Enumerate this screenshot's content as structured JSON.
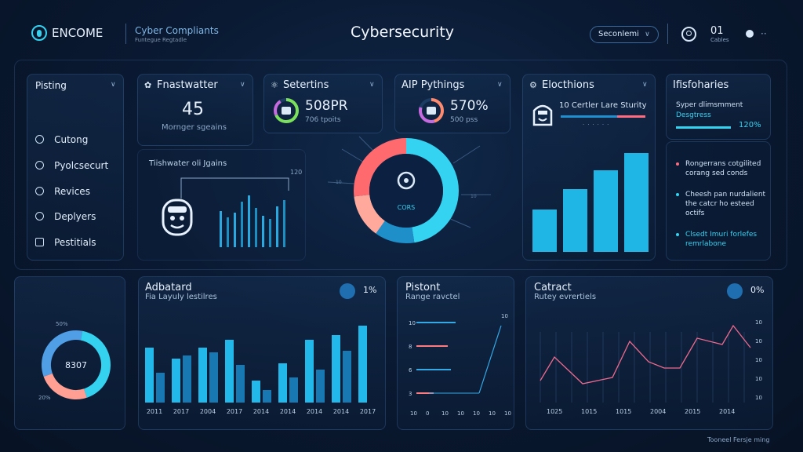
{
  "header": {
    "brand": "ENCOME",
    "subtitle": "Cyber Compliants",
    "subtitle2": "Funtegue Regtadle",
    "title": "Cybersecurity",
    "search_label": "Seconlemi",
    "counter_value": "01",
    "counter_label": "Cables"
  },
  "sidebar": {
    "heading": "Pisting",
    "items": [
      {
        "label": "Cutong"
      },
      {
        "label": "Pyolcsecurt"
      },
      {
        "label": "Revices"
      },
      {
        "label": "Deplyers"
      },
      {
        "label": "Pestitials"
      }
    ]
  },
  "panel_frustrated": {
    "title": "Fnastwatter",
    "value": "45",
    "caption": "Mornger sgeains",
    "chart_label": "Tiishwater oli Jgains",
    "axis_top": "120"
  },
  "panel_selections": {
    "title": "Setertins",
    "value": "508PR",
    "caption": "706 tpoits"
  },
  "panel_apy": {
    "title": "AIP Pythings",
    "value": "570%",
    "caption": "500 pss",
    "donut_label": "CORS"
  },
  "panel_elections": {
    "title": "Elocthions",
    "line1": "10 Certler Lare Sturity"
  },
  "panel_infobaries": {
    "title": "Ifisfoharies",
    "subtitle": "Syper dlimsmment",
    "subtitle2": "Desgtress",
    "progress_value": "120%",
    "bullets": [
      {
        "text": "Rongerrans cotgilited corang sed conds",
        "color": "#ff6b7f"
      },
      {
        "text": "Cheesh pan nurdalient the catcr ho esteed octifs",
        "color": "#35d2f0"
      },
      {
        "text": "Clsedt Imuri forlefes remrlabone",
        "color": "#35d2f0"
      }
    ]
  },
  "panel_ring": {
    "value": "8307",
    "label_top": "50%",
    "label_bottom": "20%"
  },
  "panel_adjusted": {
    "title": "Adbatard",
    "subtitle": "Fia Layuly lestilres",
    "badge_value": "1%",
    "years": [
      "2011",
      "2017",
      "2004",
      "2017",
      "2014",
      "2014",
      "2014",
      "2014",
      "2017"
    ]
  },
  "panel_pistont": {
    "title": "Pistont",
    "subtitle": "Range ravctel",
    "ticks": [
      "10",
      "8",
      "6",
      "3"
    ],
    "xticks": [
      "10",
      "0",
      "10",
      "10",
      "10",
      "10",
      "10"
    ],
    "top": "10"
  },
  "panel_catract": {
    "title": "Catract",
    "subtitle": "Rutey evrertiels",
    "badge_value": "0%",
    "years": [
      "1025",
      "1015",
      "1015",
      "2004",
      "2015",
      "2014"
    ],
    "right_ticks": [
      "10",
      "10",
      "10",
      "10",
      "10"
    ]
  },
  "footer": {
    "text": "Tooneel Fersje ming"
  },
  "colors": {
    "accent": "#35d2f0",
    "bar_dark": "#1b8fc2",
    "coral": "#ff7a7f",
    "pink": "#e3607e",
    "bg": "#0a1a33"
  }
}
